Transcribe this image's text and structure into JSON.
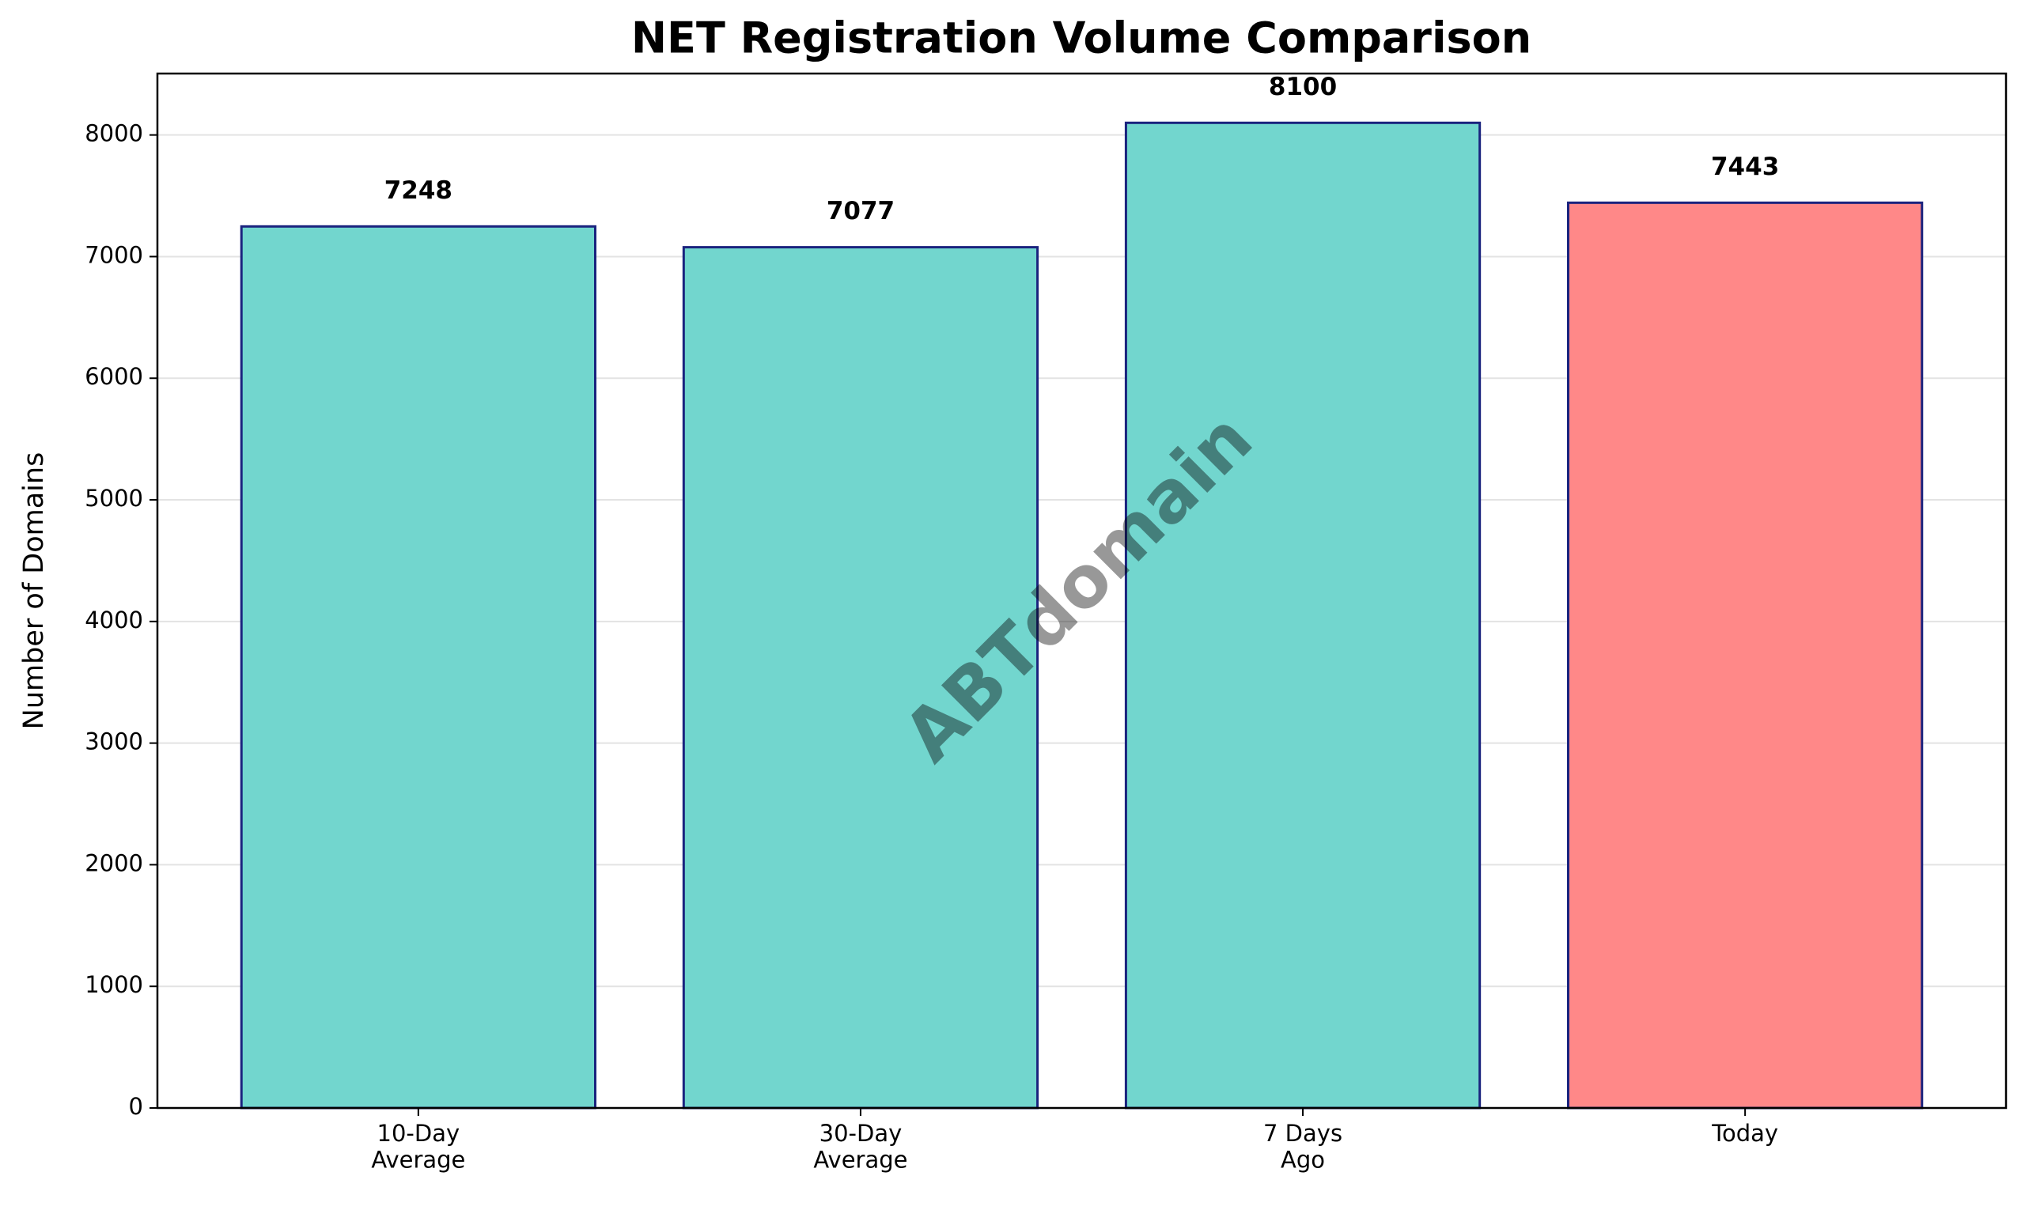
{
  "chart_data": {
    "type": "bar",
    "title": "NET Registration Volume Comparison",
    "ylabel": "Number of Domains",
    "categories": [
      "10-Day\nAverage",
      "30-Day\nAverage",
      "7 Days\nAgo",
      "Today"
    ],
    "values": [
      7248,
      7077,
      8100,
      7443
    ],
    "colors": [
      "#72d6ce",
      "#72d6ce",
      "#72d6ce",
      "#ff8888"
    ],
    "edgecolor": "#1a237e",
    "ylim": [
      0,
      8505
    ],
    "yticks": [
      0,
      1000,
      2000,
      3000,
      4000,
      5000,
      6000,
      7000,
      8000
    ],
    "grid": true,
    "watermark": "ABTdomain"
  }
}
